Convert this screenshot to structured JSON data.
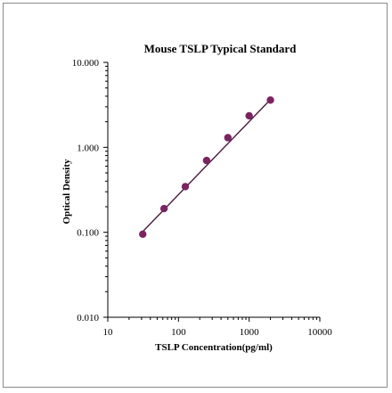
{
  "chart_data": {
    "type": "scatter",
    "title": "Mouse TSLP Typical Standard",
    "xlabel": "TSLP Concentration(pg/ml)",
    "ylabel": "Optical Density",
    "xscale": "log",
    "yscale": "log",
    "xlim": [
      10,
      10000
    ],
    "ylim": [
      0.01,
      10
    ],
    "x_tick_labels": [
      "10",
      "100",
      "1000",
      "10000"
    ],
    "y_tick_labels": [
      "0.010",
      "0.100",
      "1.000",
      "10.000"
    ],
    "grid": false,
    "legend": "none",
    "series": [
      {
        "points": [
          {
            "x": 31.25,
            "y": 0.095
          },
          {
            "x": 62.5,
            "y": 0.19
          },
          {
            "x": 125,
            "y": 0.345
          },
          {
            "x": 250,
            "y": 0.7
          },
          {
            "x": 500,
            "y": 1.3
          },
          {
            "x": 1000,
            "y": 2.35
          },
          {
            "x": 2000,
            "y": 3.6
          }
        ],
        "color": "#7b2461"
      }
    ],
    "fit_line": {
      "from": {
        "x": 31.25,
        "y": 0.102
      },
      "to": {
        "x": 2000,
        "y": 3.65
      },
      "color": "#4a1a3c"
    }
  }
}
